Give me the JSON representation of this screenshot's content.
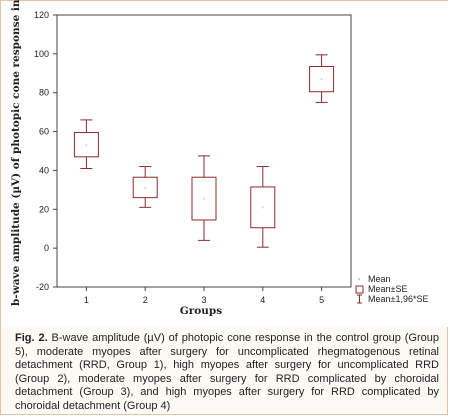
{
  "chart_data": {
    "type": "box",
    "title": "",
    "xlabel": "Groups",
    "ylabel": "b-wave amplitude (µV) of photopic cone response in the affected eye",
    "categories": [
      "1",
      "2",
      "3",
      "4",
      "5"
    ],
    "ylim": [
      -20,
      120
    ],
    "yticks": [
      -20,
      0,
      20,
      40,
      60,
      80,
      100,
      120
    ],
    "grid": false,
    "legend": {
      "position": "bottom-right",
      "entries": [
        "Mean",
        "Mean±SE",
        "Mean±1,96*SE"
      ]
    },
    "series": [
      {
        "group": "1",
        "mean": 53,
        "se_low": 47,
        "se_high": 59.5,
        "ci_low": 41,
        "ci_high": 66
      },
      {
        "group": "2",
        "mean": 31,
        "se_low": 26,
        "se_high": 36.5,
        "ci_low": 21,
        "ci_high": 42
      },
      {
        "group": "3",
        "mean": 25.5,
        "se_low": 14.5,
        "se_high": 36.5,
        "ci_low": 4,
        "ci_high": 47.5
      },
      {
        "group": "4",
        "mean": 21,
        "se_low": 10.5,
        "se_high": 31.5,
        "ci_low": 0.5,
        "ci_high": 42
      },
      {
        "group": "5",
        "mean": 87,
        "se_low": 80.5,
        "se_high": 93.5,
        "ci_low": 75,
        "ci_high": 99.5
      }
    ]
  },
  "caption": {
    "label": "Fig. 2.",
    "text": "B-wave amplitude (µV) of photopic cone response in the control group (Group 5), moderate myopes after surgery for uncomplicated rhegmatogenous retinal detachment (RRD, Group 1), high myopes after surgery for uncomplicated RRD (Group 2), moderate myopes after surgery for RRD complicated by choroidal detachment (Group 3), and high myopes after surgery for RRD complicated by choroidal detachment (Group 4)"
  },
  "colors": {
    "box_stroke": "#8b2b2b",
    "axis": "#444444",
    "figure_border": "#e7c3a1"
  }
}
